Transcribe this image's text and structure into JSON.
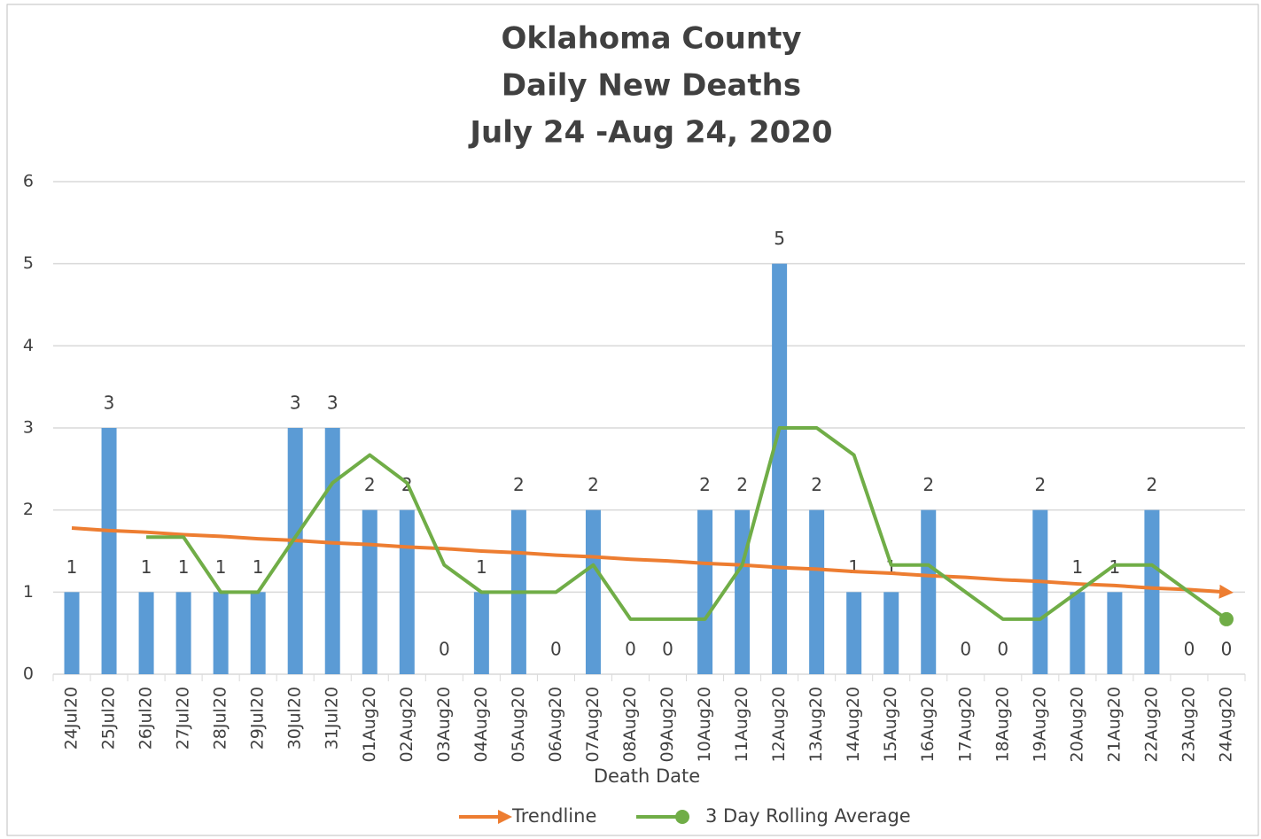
{
  "chart_data": {
    "type": "bar",
    "title": [
      "Oklahoma County",
      "Daily New Deaths",
      "July 24 -Aug 24, 2020"
    ],
    "x_label": "Death Date",
    "categories": [
      "24Jul20",
      "25Jul20",
      "26Jul20",
      "27Jul20",
      "28Jul20",
      "29Jul20",
      "30Jul20",
      "31Jul20",
      "01Aug20",
      "02Aug20",
      "03Aug20",
      "04Aug20",
      "05Aug20",
      "06Aug20",
      "07Aug20",
      "08Aug20",
      "09Aug20",
      "10Aug20",
      "11Aug20",
      "12Aug20",
      "13Aug20",
      "14Aug20",
      "15Aug20",
      "16Aug20",
      "17Aug20",
      "18Aug20",
      "19Aug20",
      "20Aug20",
      "21Aug20",
      "22Aug20",
      "23Aug20",
      "24Aug20"
    ],
    "values": [
      1,
      3,
      1,
      1,
      1,
      1,
      3,
      3,
      2,
      2,
      0,
      1,
      2,
      0,
      2,
      0,
      0,
      2,
      2,
      5,
      2,
      1,
      1,
      2,
      0,
      0,
      2,
      1,
      1,
      2,
      0,
      0
    ],
    "color": "#5b9bd5",
    "series": [
      {
        "name": "Trendline",
        "type": "line",
        "color": "#ed7d31",
        "values": [
          1.78,
          1.75,
          1.73,
          1.7,
          1.68,
          1.65,
          1.63,
          1.6,
          1.58,
          1.55,
          1.53,
          1.5,
          1.48,
          1.45,
          1.43,
          1.4,
          1.38,
          1.35,
          1.33,
          1.3,
          1.28,
          1.25,
          1.23,
          1.2,
          1.18,
          1.15,
          1.13,
          1.1,
          1.08,
          1.05,
          1.03,
          1.0
        ]
      },
      {
        "name": "3 Day Rolling Average",
        "type": "line",
        "color": "#70ad47",
        "values": [
          null,
          null,
          1.67,
          1.67,
          1,
          1,
          1.67,
          2.33,
          2.67,
          2.33,
          1.33,
          1,
          1,
          1,
          1.33,
          0.67,
          0.67,
          0.67,
          1.33,
          3,
          3,
          2.67,
          1.33,
          1.33,
          1,
          0.67,
          0.67,
          1,
          1.33,
          1.33,
          1,
          0.67
        ]
      }
    ],
    "ylim": [
      0,
      6
    ],
    "yticks": [
      0,
      1,
      2,
      3,
      4,
      5,
      6
    ],
    "grid": true
  }
}
